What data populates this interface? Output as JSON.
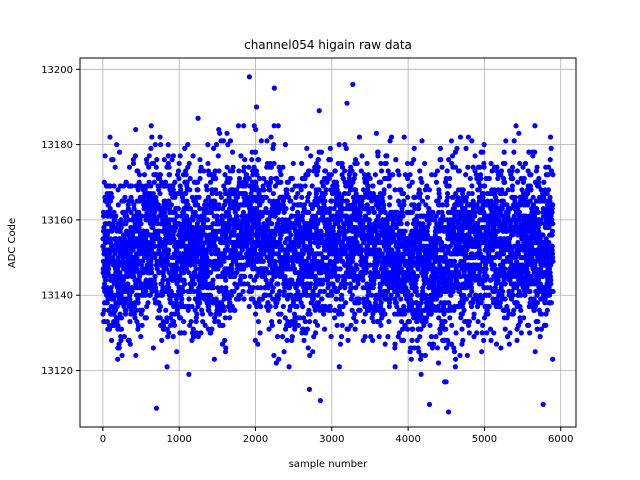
{
  "chart_data": {
    "type": "scatter",
    "title": "channel054 higain raw data",
    "xlabel": "sample number",
    "ylabel": "ADC Code",
    "xlim": [
      -300,
      6200
    ],
    "ylim": [
      13105,
      13203
    ],
    "xticks": [
      0,
      1000,
      2000,
      3000,
      4000,
      5000,
      6000
    ],
    "yticks": [
      13120,
      13140,
      13160,
      13180,
      13200
    ],
    "grid": true,
    "marker_color": "#0000ff",
    "n_points": 5900,
    "baseline": 13152,
    "noise_sigma": 11,
    "highlights": [
      {
        "x": 1920,
        "y": 13198
      },
      {
        "x": 4530,
        "y": 13109
      },
      {
        "x": 4280,
        "y": 13111
      },
      {
        "x": 2850,
        "y": 13112
      },
      {
        "x": 5770,
        "y": 13111
      }
    ]
  }
}
